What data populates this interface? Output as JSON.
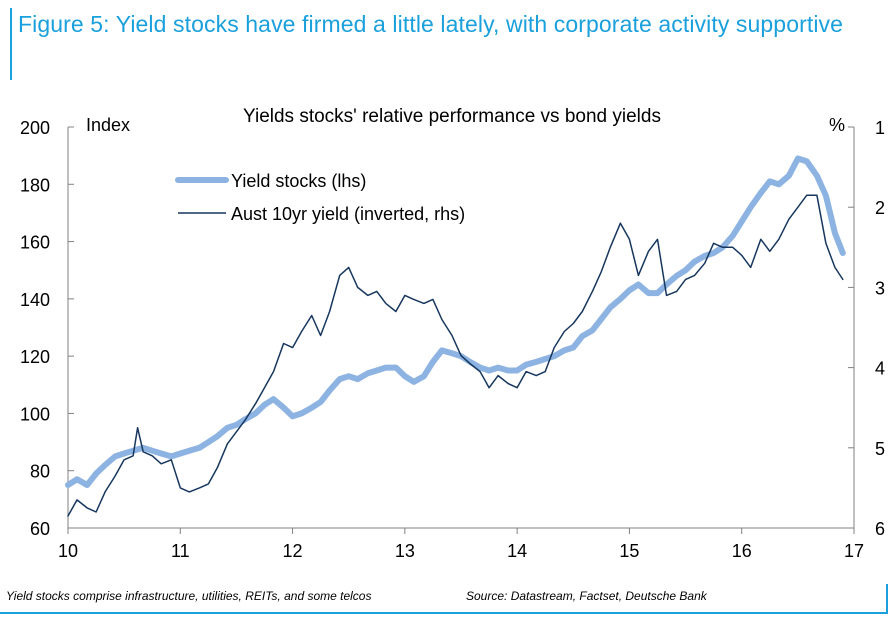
{
  "figure": {
    "title": "Figure 5: Yield stocks have firmed a little lately, with corporate activity supportive",
    "footnote_left": "Yield stocks comprise infrastructure, utilities, REITs, and some telcos",
    "footnote_right": "Source: Datastream, Factset, Deutsche Bank"
  },
  "colors": {
    "accent": "#1aa0dc",
    "series_yield_stocks": "#8db3e2",
    "series_bond_yield": "#17375e",
    "axis": "#808080"
  },
  "chart_data": {
    "type": "line",
    "title": "Yields stocks' relative performance vs bond yields",
    "ylabel": "Index",
    "ylabel_right": "%",
    "xlim": [
      10,
      17
    ],
    "ylim": [
      60,
      200
    ],
    "ylim_right": [
      1,
      6
    ],
    "right_axis_inverted": true,
    "x_ticks": [
      "10",
      "11",
      "12",
      "13",
      "14",
      "15",
      "16",
      "17"
    ],
    "y_ticks": [
      "60",
      "80",
      "100",
      "120",
      "140",
      "160",
      "180",
      "200"
    ],
    "y_ticks_right": [
      "1",
      "2",
      "3",
      "4",
      "5",
      "6"
    ],
    "legend_position": "top-left",
    "series": [
      {
        "name": "Yield stocks (lhs)",
        "axis": "left",
        "x": [
          10.0,
          10.08,
          10.17,
          10.25,
          10.33,
          10.42,
          10.5,
          10.58,
          10.67,
          10.75,
          10.83,
          10.92,
          11.0,
          11.08,
          11.17,
          11.25,
          11.33,
          11.42,
          11.5,
          11.58,
          11.67,
          11.75,
          11.83,
          11.92,
          12.0,
          12.08,
          12.17,
          12.25,
          12.33,
          12.42,
          12.5,
          12.58,
          12.67,
          12.75,
          12.83,
          12.92,
          13.0,
          13.08,
          13.17,
          13.25,
          13.33,
          13.42,
          13.5,
          13.58,
          13.67,
          13.75,
          13.83,
          13.92,
          14.0,
          14.08,
          14.17,
          14.25,
          14.33,
          14.42,
          14.5,
          14.58,
          14.67,
          14.75,
          14.83,
          14.92,
          15.0,
          15.08,
          15.17,
          15.25,
          15.33,
          15.42,
          15.5,
          15.58,
          15.67,
          15.75,
          15.83,
          15.92,
          16.0,
          16.08,
          16.17,
          16.25,
          16.33,
          16.42,
          16.5,
          16.58,
          16.67,
          16.75,
          16.83,
          16.9
        ],
        "y": [
          75,
          77,
          75,
          79,
          82,
          85,
          86,
          87,
          88,
          87,
          86,
          85,
          86,
          87,
          88,
          90,
          92,
          95,
          96,
          98,
          100,
          103,
          105,
          102,
          99,
          100,
          102,
          104,
          108,
          112,
          113,
          112,
          114,
          115,
          116,
          116,
          113,
          111,
          113,
          118,
          122,
          121,
          120,
          118,
          116,
          115,
          116,
          115,
          115,
          117,
          118,
          119,
          120,
          122,
          123,
          127,
          129,
          133,
          137,
          140,
          143,
          145,
          142,
          142,
          145,
          148,
          150,
          153,
          155,
          156,
          158,
          162,
          167,
          172,
          177,
          181,
          180,
          183,
          189,
          188,
          183,
          176,
          163,
          156
        ]
      },
      {
        "name": "Aust 10yr yield (inverted, rhs)",
        "axis": "right",
        "x": [
          10.0,
          10.08,
          10.17,
          10.25,
          10.33,
          10.42,
          10.5,
          10.58,
          10.62,
          10.67,
          10.75,
          10.83,
          10.92,
          11.0,
          11.08,
          11.17,
          11.25,
          11.33,
          11.42,
          11.5,
          11.58,
          11.67,
          11.75,
          11.83,
          11.92,
          12.0,
          12.08,
          12.17,
          12.25,
          12.33,
          12.42,
          12.5,
          12.58,
          12.67,
          12.75,
          12.83,
          12.92,
          13.0,
          13.08,
          13.17,
          13.25,
          13.33,
          13.42,
          13.5,
          13.58,
          13.67,
          13.75,
          13.83,
          13.92,
          14.0,
          14.08,
          14.17,
          14.25,
          14.33,
          14.42,
          14.5,
          14.58,
          14.67,
          14.75,
          14.83,
          14.92,
          15.0,
          15.08,
          15.17,
          15.25,
          15.33,
          15.42,
          15.5,
          15.58,
          15.67,
          15.75,
          15.83,
          15.92,
          16.0,
          16.08,
          16.17,
          16.25,
          16.33,
          16.42,
          16.5,
          16.58,
          16.67,
          16.75,
          16.83,
          16.9
        ],
        "y": [
          5.85,
          5.65,
          5.75,
          5.8,
          5.55,
          5.35,
          5.15,
          5.1,
          4.75,
          5.05,
          5.1,
          5.2,
          5.15,
          5.5,
          5.55,
          5.5,
          5.45,
          5.25,
          4.95,
          4.8,
          4.65,
          4.45,
          4.25,
          4.05,
          3.7,
          3.75,
          3.55,
          3.35,
          3.6,
          3.3,
          2.85,
          2.75,
          3.0,
          3.1,
          3.05,
          3.2,
          3.3,
          3.1,
          3.15,
          3.2,
          3.15,
          3.4,
          3.6,
          3.85,
          3.95,
          4.05,
          4.25,
          4.1,
          4.2,
          4.25,
          4.05,
          4.1,
          4.05,
          3.75,
          3.55,
          3.45,
          3.3,
          3.05,
          2.8,
          2.5,
          2.2,
          2.4,
          2.85,
          2.55,
          2.4,
          3.1,
          3.05,
          2.9,
          2.85,
          2.7,
          2.45,
          2.5,
          2.5,
          2.6,
          2.75,
          2.4,
          2.55,
          2.4,
          2.15,
          2.0,
          1.85,
          1.85,
          2.45,
          2.75,
          2.9
        ]
      }
    ]
  }
}
